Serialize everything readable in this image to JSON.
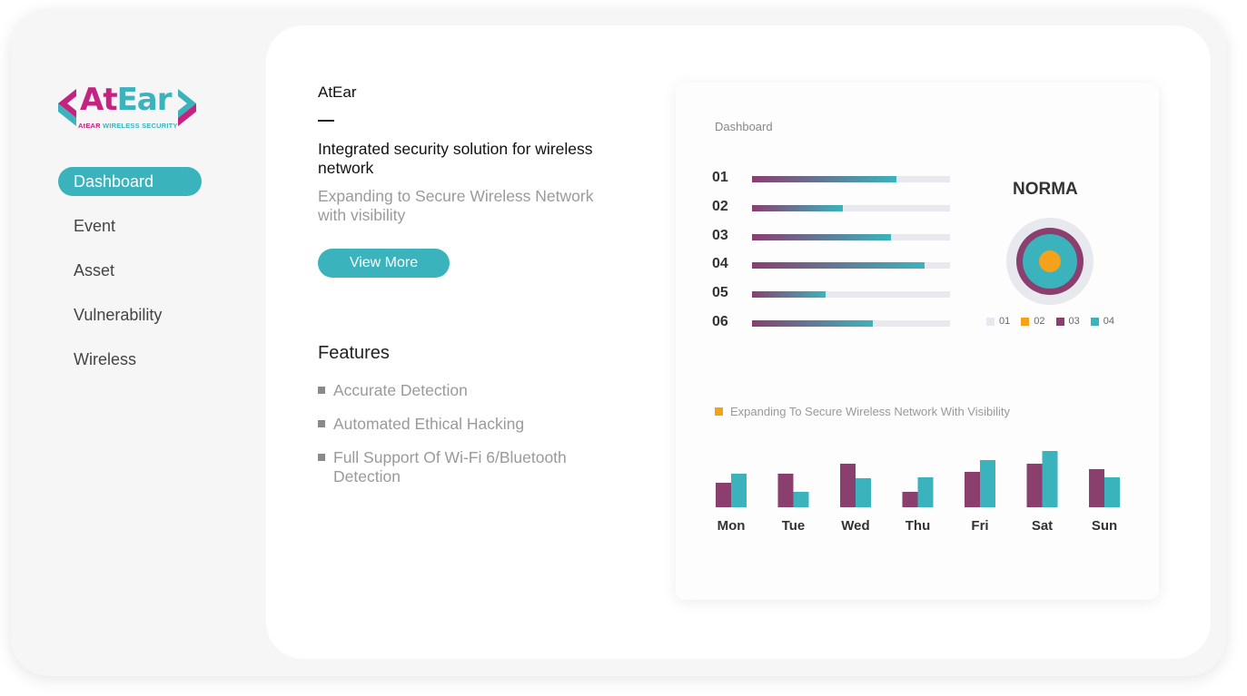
{
  "logo": {
    "at": "At",
    "ear": "Ear",
    "tag_a": "AtEAR",
    "tag_b": "WIRELESS SECURITY"
  },
  "sidebar": {
    "items": [
      {
        "label": "Dashboard",
        "active": true
      },
      {
        "label": "Event"
      },
      {
        "label": "Asset"
      },
      {
        "label": "Vulnerability"
      },
      {
        "label": "Wireless"
      }
    ]
  },
  "intro": {
    "brand": "AtEar",
    "headline": "Integrated security solution for wireless network",
    "subline": "Expanding to Secure Wireless Network with visibility",
    "button": "View More"
  },
  "features": {
    "title": "Features",
    "items": [
      "Accurate Detection",
      "Automated Ethical Hacking",
      "Full Support Of Wi-Fi 6/Bluetooth Detection"
    ]
  },
  "dashboard": {
    "title": "Dashboard",
    "norma": "NORMA",
    "legend": [
      {
        "label": "01",
        "color": "#e7e9ef"
      },
      {
        "label": "02",
        "color": "#f4a11b"
      },
      {
        "label": "03",
        "color": "#8a3f6e"
      },
      {
        "label": "04",
        "color": "#3bb3bd"
      }
    ],
    "chart_note": "Expanding To Secure Wireless Network With Visibility"
  },
  "chart_data": [
    {
      "type": "bar",
      "orientation": "horizontal",
      "categories": [
        "01",
        "02",
        "03",
        "04",
        "05",
        "06"
      ],
      "values": [
        0.73,
        0.46,
        0.7,
        0.87,
        0.37,
        0.61
      ],
      "xlim": [
        0,
        1
      ]
    },
    {
      "type": "bar",
      "categories": [
        "Mon",
        "Tue",
        "Wed",
        "Thu",
        "Fri",
        "Sat",
        "Sun"
      ],
      "series": [
        {
          "color": "#8a3f6e",
          "values": [
            27,
            37,
            48,
            17,
            39,
            48,
            42
          ]
        },
        {
          "color": "#3bb3bd",
          "values": [
            37,
            17,
            32,
            33,
            52,
            62,
            33
          ]
        }
      ],
      "ylim": [
        0,
        65
      ],
      "grid": false
    }
  ]
}
